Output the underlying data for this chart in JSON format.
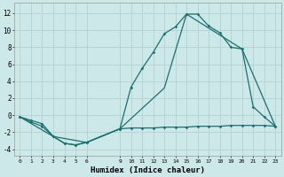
{
  "title": "",
  "xlabel": "Humidex (Indice chaleur)",
  "ylabel": "",
  "bg_color": "#cce8e8",
  "grid_color": "#b8d4d4",
  "line_color": "#1a7070",
  "xlim": [
    -0.5,
    23.5
  ],
  "ylim": [
    -4.8,
    13.2
  ],
  "xticks": [
    0,
    1,
    2,
    3,
    4,
    5,
    6,
    9,
    10,
    11,
    12,
    13,
    14,
    15,
    16,
    17,
    18,
    19,
    20,
    21,
    22,
    23
  ],
  "yticks": [
    -4,
    -2,
    0,
    2,
    4,
    6,
    8,
    10,
    12
  ],
  "line1_x": [
    0,
    1,
    2,
    3,
    4,
    5,
    6,
    9,
    10,
    11,
    12,
    13,
    14,
    15,
    16,
    17,
    18,
    19,
    20,
    21,
    22,
    23
  ],
  "line1_y": [
    -0.2,
    -0.8,
    -1.3,
    -2.5,
    -3.3,
    -3.5,
    -3.2,
    -1.6,
    -1.5,
    -1.5,
    -1.5,
    -1.4,
    -1.4,
    -1.4,
    -1.3,
    -1.3,
    -1.3,
    -1.2,
    -1.2,
    -1.2,
    -1.2,
    -1.3
  ],
  "line2_x": [
    0,
    1,
    2,
    3,
    4,
    5,
    6,
    9,
    10,
    11,
    12,
    13,
    14,
    15,
    16,
    17,
    18,
    19,
    20,
    21,
    22,
    23
  ],
  "line2_y": [
    -0.2,
    -0.6,
    -1.0,
    -2.5,
    -3.3,
    -3.5,
    -3.2,
    -1.6,
    3.3,
    5.5,
    7.4,
    9.6,
    10.4,
    11.9,
    11.9,
    10.5,
    9.7,
    8.0,
    7.8,
    1.0,
    -0.2,
    -1.3
  ],
  "line3_x": [
    0,
    3,
    6,
    9,
    13,
    15,
    20,
    23
  ],
  "line3_y": [
    -0.2,
    -2.5,
    -3.2,
    -1.6,
    3.2,
    11.9,
    7.8,
    -1.3
  ]
}
